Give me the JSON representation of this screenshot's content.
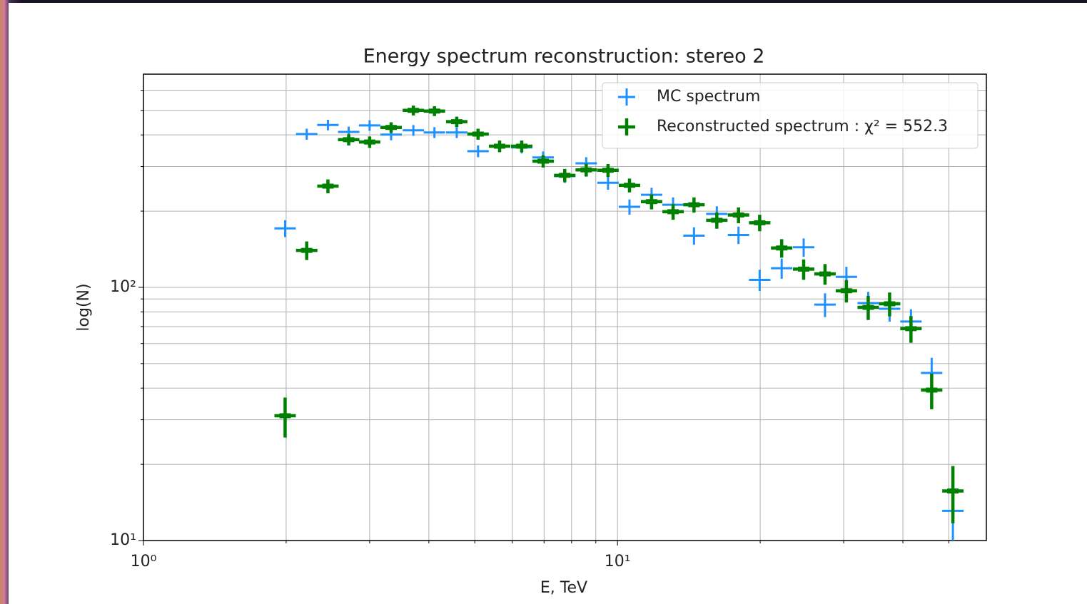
{
  "chart_data": {
    "type": "errorbar",
    "title": "Energy spectrum reconstruction: stereo 2",
    "x_label": "E, TeV",
    "y_label": "log(N)",
    "x_scale": "log",
    "y_scale": "log",
    "xlim": [
      1,
      60
    ],
    "ylim": [
      10,
      695
    ],
    "xticks": [
      {
        "value": 1,
        "label": "10⁰"
      },
      {
        "value": 10,
        "label": "10¹"
      }
    ],
    "yticks": [
      {
        "value": 10,
        "label": "10¹"
      },
      {
        "value": 100,
        "label": "10²"
      }
    ],
    "x_minor_ticks": [
      2,
      3,
      4,
      5,
      6,
      7,
      8,
      9,
      20,
      30,
      40,
      50
    ],
    "y_minor_ticks": [
      20,
      30,
      40,
      50,
      60,
      70,
      80,
      90,
      200,
      300,
      400,
      500,
      600
    ],
    "grid": true,
    "legend_position": "upper right",
    "x": [
      1.99,
      2.21,
      2.45,
      2.71,
      3.0,
      3.33,
      3.71,
      4.11,
      4.58,
      5.08,
      5.64,
      6.28,
      6.97,
      7.74,
      8.59,
      9.55,
      10.6,
      11.8,
      13.1,
      14.5,
      16.2,
      18.0,
      19.95,
      22.2,
      24.7,
      27.4,
      30.4,
      33.8,
      37.5,
      41.6,
      46.0,
      51.0
    ],
    "series": [
      {
        "name": "MC spectrum",
        "color": "#1e90ff",
        "values": [
          171,
          403,
          438,
          411,
          436,
          401,
          417,
          409,
          409,
          345,
          361,
          357,
          326,
          275,
          309,
          259,
          208,
          232,
          212,
          160,
          195,
          161,
          107,
          119,
          144,
          85.5,
          110,
          86.7,
          82.3,
          73.3,
          45.9,
          13.1
        ],
        "yerr": [
          13.1,
          20.1,
          20.9,
          20.3,
          20.9,
          20.0,
          20.4,
          20.2,
          20.2,
          18.6,
          19.0,
          18.9,
          18.1,
          16.6,
          17.6,
          16.1,
          14.4,
          15.2,
          14.6,
          12.6,
          14.0,
          12.7,
          10.3,
          10.9,
          12.0,
          9.2,
          10.5,
          9.3,
          9.1,
          8.6,
          6.8,
          3.6
        ]
      },
      {
        "name": "Reconstructed spectrum : χ² = 552.3",
        "color": "#008000",
        "values": [
          31.1,
          140,
          251,
          383,
          375,
          428,
          500,
          497,
          451,
          403,
          361,
          361,
          315,
          277,
          291,
          290,
          253,
          218,
          199,
          212,
          184,
          193,
          180,
          143,
          118,
          113,
          96.9,
          83.4,
          86.1,
          68.7,
          39.3,
          15.7
        ],
        "yerr": [
          5.6,
          11.8,
          15.8,
          19.6,
          19.4,
          20.7,
          22.4,
          22.3,
          21.2,
          20.1,
          19.0,
          19.0,
          17.7,
          16.6,
          17.1,
          17.0,
          15.9,
          14.8,
          14.1,
          14.6,
          13.6,
          13.9,
          13.4,
          12.0,
          10.9,
          10.6,
          9.8,
          9.1,
          9.3,
          8.3,
          6.3,
          4.0
        ]
      }
    ]
  }
}
